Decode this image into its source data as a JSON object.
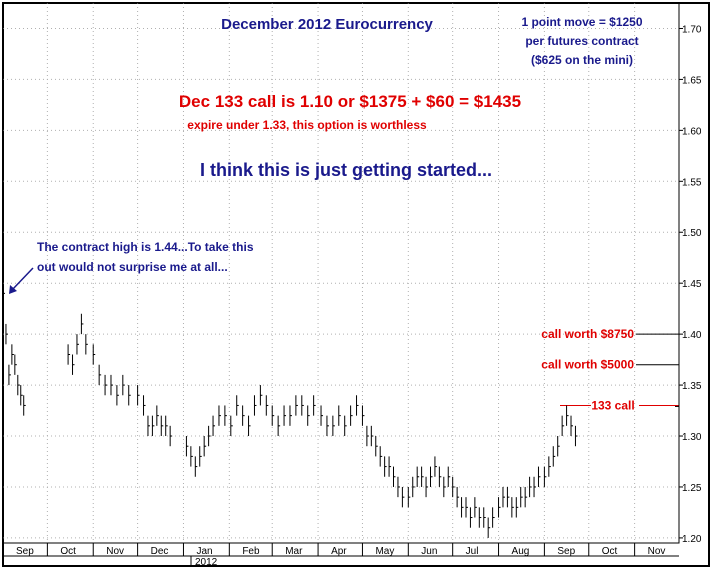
{
  "chart_data": {
    "type": "bar",
    "subtype": "ohlc",
    "title": "December 2012 Eurocurrency",
    "xlabel": "",
    "ylabel": "",
    "ylim": [
      1.195,
      1.725
    ],
    "yticks": [
      "1.20",
      "1.25",
      "1.30",
      "1.35",
      "1.40",
      "1.45",
      "1.50",
      "1.55",
      "1.60",
      "1.65",
      "1.70"
    ],
    "month_labels": [
      "Sep",
      "Oct",
      "Nov",
      "Dec",
      "Jan",
      "Feb",
      "Mar",
      "Apr",
      "May",
      "Jun",
      "Jul",
      "Aug",
      "Sep",
      "Oct",
      "Nov"
    ],
    "year_label": "2012",
    "grid": true,
    "series": [
      {
        "values": [
          [
            "2011-09-01",
            1.44,
            1.43,
            1.45
          ],
          [
            "2011-09-03",
            1.4,
            1.39,
            1.41
          ],
          [
            "2011-09-05",
            1.36,
            1.35,
            1.37
          ],
          [
            "2011-09-07",
            1.38,
            1.37,
            1.39
          ],
          [
            "2011-09-09",
            1.37,
            1.36,
            1.38
          ],
          [
            "2011-09-11",
            1.35,
            1.34,
            1.36
          ],
          [
            "2011-09-13",
            1.34,
            1.33,
            1.35
          ],
          [
            "2011-09-15",
            1.33,
            1.32,
            1.34
          ],
          [
            "2011-10-15",
            1.38,
            1.37,
            1.39
          ],
          [
            "2011-10-18",
            1.37,
            1.36,
            1.38
          ],
          [
            "2011-10-21",
            1.39,
            1.38,
            1.4
          ],
          [
            "2011-10-24",
            1.41,
            1.4,
            1.42
          ],
          [
            "2011-10-27",
            1.39,
            1.38,
            1.4
          ],
          [
            "2011-11-01",
            1.38,
            1.37,
            1.39
          ],
          [
            "2011-11-05",
            1.36,
            1.35,
            1.37
          ],
          [
            "2011-11-09",
            1.35,
            1.34,
            1.36
          ],
          [
            "2011-11-13",
            1.35,
            1.34,
            1.36
          ],
          [
            "2011-11-17",
            1.34,
            1.33,
            1.35
          ],
          [
            "2011-11-21",
            1.35,
            1.34,
            1.36
          ],
          [
            "2011-11-25",
            1.34,
            1.33,
            1.35
          ],
          [
            "2011-12-01",
            1.34,
            1.33,
            1.35
          ],
          [
            "2011-12-05",
            1.33,
            1.32,
            1.34
          ],
          [
            "2011-12-08",
            1.31,
            1.3,
            1.32
          ],
          [
            "2011-12-11",
            1.31,
            1.3,
            1.32
          ],
          [
            "2011-12-14",
            1.32,
            1.31,
            1.33
          ],
          [
            "2011-12-17",
            1.31,
            1.3,
            1.32
          ],
          [
            "2011-12-20",
            1.31,
            1.3,
            1.32
          ],
          [
            "2011-12-23",
            1.3,
            1.29,
            1.31
          ],
          [
            "2012-01-03",
            1.29,
            1.28,
            1.3
          ],
          [
            "2012-01-06",
            1.28,
            1.27,
            1.29
          ],
          [
            "2012-01-09",
            1.27,
            1.26,
            1.28
          ],
          [
            "2012-01-12",
            1.28,
            1.27,
            1.29
          ],
          [
            "2012-01-15",
            1.29,
            1.28,
            1.3
          ],
          [
            "2012-01-18",
            1.3,
            1.29,
            1.31
          ],
          [
            "2012-01-21",
            1.31,
            1.3,
            1.32
          ],
          [
            "2012-01-25",
            1.32,
            1.31,
            1.33
          ],
          [
            "2012-01-29",
            1.32,
            1.31,
            1.33
          ],
          [
            "2012-02-02",
            1.31,
            1.3,
            1.32
          ],
          [
            "2012-02-06",
            1.33,
            1.32,
            1.34
          ],
          [
            "2012-02-10",
            1.32,
            1.31,
            1.33
          ],
          [
            "2012-02-14",
            1.31,
            1.3,
            1.32
          ],
          [
            "2012-02-18",
            1.33,
            1.32,
            1.34
          ],
          [
            "2012-02-22",
            1.34,
            1.33,
            1.35
          ],
          [
            "2012-02-26",
            1.33,
            1.32,
            1.34
          ],
          [
            "2012-03-01",
            1.32,
            1.31,
            1.33
          ],
          [
            "2012-03-05",
            1.31,
            1.3,
            1.32
          ],
          [
            "2012-03-09",
            1.32,
            1.31,
            1.33
          ],
          [
            "2012-03-13",
            1.32,
            1.31,
            1.33
          ],
          [
            "2012-03-17",
            1.33,
            1.32,
            1.34
          ],
          [
            "2012-03-21",
            1.33,
            1.32,
            1.34
          ],
          [
            "2012-03-25",
            1.32,
            1.31,
            1.33
          ],
          [
            "2012-03-29",
            1.33,
            1.32,
            1.34
          ],
          [
            "2012-04-03",
            1.32,
            1.31,
            1.33
          ],
          [
            "2012-04-07",
            1.31,
            1.3,
            1.32
          ],
          [
            "2012-04-11",
            1.31,
            1.3,
            1.32
          ],
          [
            "2012-04-15",
            1.32,
            1.31,
            1.33
          ],
          [
            "2012-04-19",
            1.31,
            1.3,
            1.32
          ],
          [
            "2012-04-23",
            1.32,
            1.31,
            1.33
          ],
          [
            "2012-04-27",
            1.33,
            1.32,
            1.34
          ],
          [
            "2012-05-01",
            1.32,
            1.31,
            1.33
          ],
          [
            "2012-05-04",
            1.3,
            1.29,
            1.31
          ],
          [
            "2012-05-07",
            1.3,
            1.29,
            1.31
          ],
          [
            "2012-05-10",
            1.29,
            1.28,
            1.3
          ],
          [
            "2012-05-13",
            1.28,
            1.27,
            1.29
          ],
          [
            "2012-05-16",
            1.27,
            1.26,
            1.28
          ],
          [
            "2012-05-19",
            1.27,
            1.26,
            1.28
          ],
          [
            "2012-05-22",
            1.26,
            1.25,
            1.27
          ],
          [
            "2012-05-25",
            1.25,
            1.24,
            1.26
          ],
          [
            "2012-05-28",
            1.24,
            1.23,
            1.25
          ],
          [
            "2012-06-01",
            1.24,
            1.23,
            1.25
          ],
          [
            "2012-06-04",
            1.25,
            1.24,
            1.26
          ],
          [
            "2012-06-07",
            1.26,
            1.25,
            1.27
          ],
          [
            "2012-06-10",
            1.26,
            1.25,
            1.27
          ],
          [
            "2012-06-13",
            1.25,
            1.24,
            1.26
          ],
          [
            "2012-06-16",
            1.26,
            1.25,
            1.27
          ],
          [
            "2012-06-19",
            1.27,
            1.26,
            1.28
          ],
          [
            "2012-06-22",
            1.26,
            1.25,
            1.27
          ],
          [
            "2012-06-25",
            1.25,
            1.24,
            1.26
          ],
          [
            "2012-06-28",
            1.26,
            1.25,
            1.27
          ],
          [
            "2012-07-01",
            1.25,
            1.24,
            1.26
          ],
          [
            "2012-07-04",
            1.24,
            1.23,
            1.25
          ],
          [
            "2012-07-07",
            1.23,
            1.22,
            1.24
          ],
          [
            "2012-07-10",
            1.23,
            1.22,
            1.24
          ],
          [
            "2012-07-13",
            1.22,
            1.21,
            1.23
          ],
          [
            "2012-07-16",
            1.23,
            1.22,
            1.24
          ],
          [
            "2012-07-19",
            1.22,
            1.21,
            1.23
          ],
          [
            "2012-07-22",
            1.22,
            1.21,
            1.23
          ],
          [
            "2012-07-25",
            1.21,
            1.2,
            1.22
          ],
          [
            "2012-07-28",
            1.22,
            1.21,
            1.23
          ],
          [
            "2012-08-01",
            1.23,
            1.22,
            1.24
          ],
          [
            "2012-08-04",
            1.24,
            1.23,
            1.25
          ],
          [
            "2012-08-07",
            1.24,
            1.23,
            1.25
          ],
          [
            "2012-08-10",
            1.23,
            1.22,
            1.24
          ],
          [
            "2012-08-13",
            1.23,
            1.22,
            1.24
          ],
          [
            "2012-08-16",
            1.24,
            1.23,
            1.25
          ],
          [
            "2012-08-19",
            1.24,
            1.23,
            1.25
          ],
          [
            "2012-08-22",
            1.25,
            1.24,
            1.26
          ],
          [
            "2012-08-25",
            1.25,
            1.24,
            1.26
          ],
          [
            "2012-08-28",
            1.26,
            1.25,
            1.27
          ],
          [
            "2012-09-01",
            1.26,
            1.25,
            1.27
          ],
          [
            "2012-09-04",
            1.27,
            1.26,
            1.28
          ],
          [
            "2012-09-07",
            1.28,
            1.27,
            1.29
          ],
          [
            "2012-09-10",
            1.29,
            1.28,
            1.3
          ],
          [
            "2012-09-13",
            1.31,
            1.3,
            1.32
          ],
          [
            "2012-09-16",
            1.32,
            1.31,
            1.33
          ],
          [
            "2012-09-19",
            1.31,
            1.3,
            1.32
          ],
          [
            "2012-09-22",
            1.3,
            1.29,
            1.31
          ]
        ]
      }
    ],
    "reference_lines": [
      {
        "label": "call worth $8750",
        "value": 1.4
      },
      {
        "label": "call worth $5000",
        "value": 1.37
      },
      {
        "label": "133 call",
        "value": 1.33
      }
    ]
  },
  "annotations": {
    "point_move_line1": "1 point move = $1250",
    "point_move_line2": "per futures contract",
    "point_move_line3": "($625 on the mini)",
    "call_price": "Dec 133 call is 1.10 or $1375 + $60 = $1435",
    "expire_note": "expire under 1.33, this option is worthless",
    "started": "I think this is just getting started...",
    "contract_high_line1": "The contract high is 1.44...To take this",
    "contract_high_line2": "out would not surprise me at all..."
  },
  "colors": {
    "frame": "#000000",
    "grid": "#b0b0b0",
    "blue_text": "#1a1a8c",
    "red_text": "#e00000",
    "bars": "#000000",
    "arrow": "#1a1a8c"
  }
}
